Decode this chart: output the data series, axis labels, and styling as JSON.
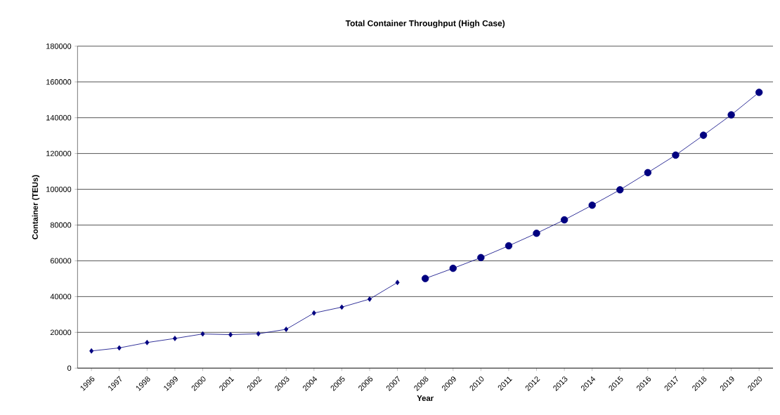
{
  "chart_data": {
    "type": "line",
    "title": "Total Container Throughput (High Case)",
    "xlabel": "Year",
    "ylabel": "Container (TEUs)",
    "categories": [
      "1996",
      "1997",
      "1998",
      "1999",
      "2000",
      "2001",
      "2002",
      "2003",
      "2004",
      "2005",
      "2006",
      "2007",
      "2008",
      "2009",
      "2010",
      "2011",
      "2012",
      "2013",
      "2014",
      "2015",
      "2016",
      "2017",
      "2018",
      "2019",
      "2020"
    ],
    "series": [
      {
        "color": "#000080",
        "marker": "diamond",
        "values": [
          9600,
          11300,
          14300,
          16600,
          19100,
          18700,
          19200,
          21700,
          30800,
          34100,
          38600,
          47900,
          null,
          null,
          null,
          null,
          null,
          null,
          null,
          null,
          null,
          null,
          null,
          null,
          null
        ]
      },
      {
        "color": "#000080",
        "marker": "circle",
        "values": [
          null,
          null,
          null,
          null,
          null,
          null,
          null,
          null,
          null,
          null,
          null,
          null,
          50100,
          55800,
          61800,
          68400,
          75400,
          82900,
          91100,
          99700,
          109300,
          119100,
          130200,
          141600,
          154200
        ]
      }
    ],
    "ylim": [
      0,
      180000
    ],
    "yticks": [
      0,
      20000,
      40000,
      60000,
      80000,
      100000,
      120000,
      140000,
      160000,
      180000
    ],
    "grid": "y"
  }
}
